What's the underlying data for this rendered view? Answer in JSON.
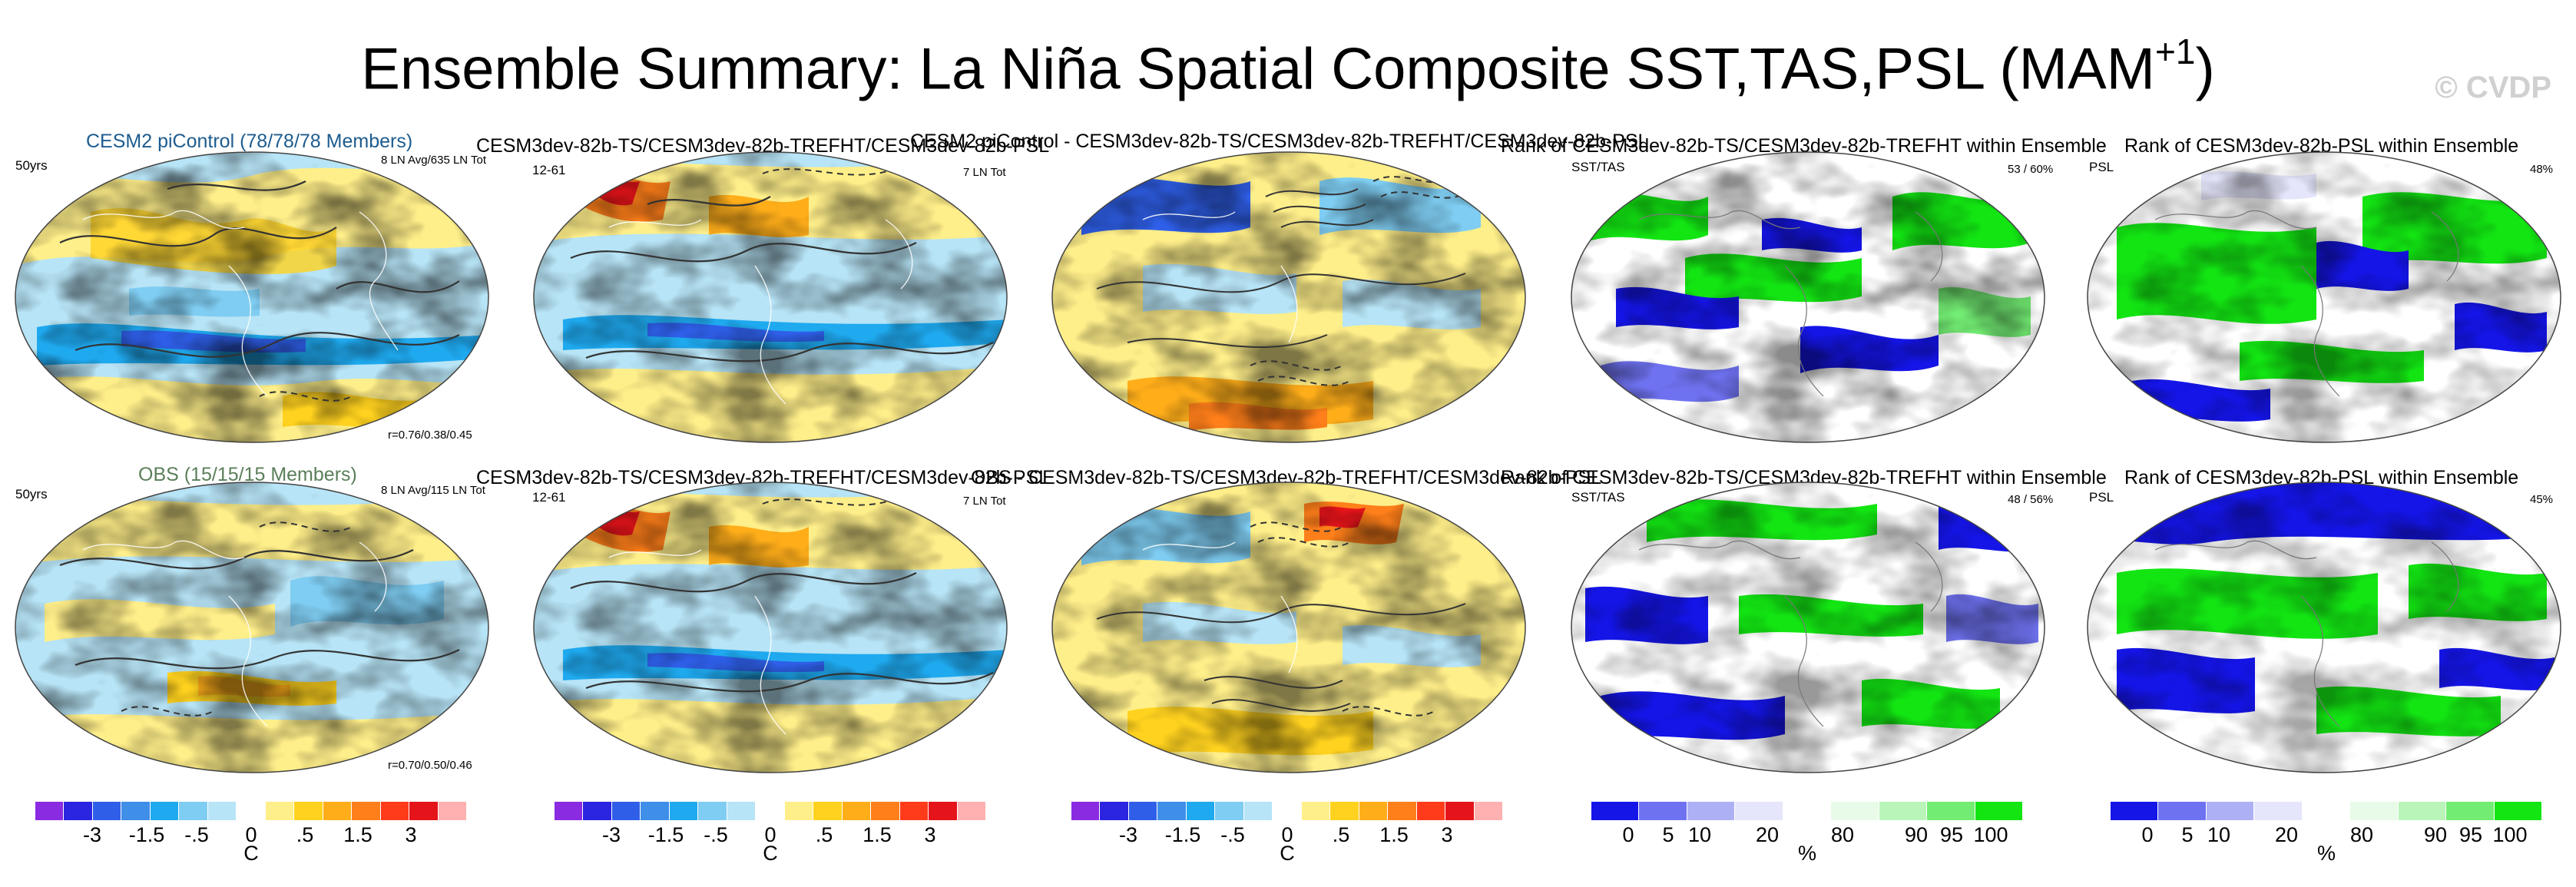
{
  "figure": {
    "title_main": "Ensemble Summary: La Niña Spatial Composite SST,TAS,PSL (MAM",
    "title_superscript": "+1",
    "title_close": ")",
    "watermark": "© CVDP"
  },
  "row1": {
    "p1": {
      "title": "CESM2 piControl (78/78/78 Members)",
      "left_label": "50yrs",
      "right_label": "8 LN Avg/635 LN Tot",
      "corr": "r=0.76/0.38/0.45"
    },
    "p2": {
      "title": "CESM3dev-82b-TS/CESM3dev-82b-TREFHT/CESM3dev-82b-PSL",
      "left_label": "12-61",
      "right_label": "7 LN Tot"
    },
    "p3": {
      "title": "CESM2 piControl - CESM3dev-82b-TS/CESM3dev-82b-TREFHT/CESM3dev-82b-PSL"
    },
    "p4": {
      "title": "Rank of CESM3dev-82b-TS/CESM3dev-82b-TREFHT within Ensemble",
      "left_label": "SST/TAS",
      "right_label": "53 /  60%"
    },
    "p5": {
      "title": "Rank of CESM3dev-82b-PSL within Ensemble",
      "left_label": "PSL",
      "right_label": "48%"
    }
  },
  "row2": {
    "p1": {
      "title": "OBS (15/15/15 Members)",
      "left_label": "50yrs",
      "right_label": "8 LN Avg/115 LN Tot",
      "corr": "r=0.70/0.50/0.46"
    },
    "p2": {
      "title": "CESM3dev-82b-TS/CESM3dev-82b-TREFHT/CESM3dev-82b-PSL",
      "left_label": "12-61",
      "right_label": "7 LN Tot"
    },
    "p3": {
      "title": "OBS - CESM3dev-82b-TS/CESM3dev-82b-TREFHT/CESM3dev-82b-PSL"
    },
    "p4": {
      "title": "Rank of CESM3dev-82b-TS/CESM3dev-82b-TREFHT within Ensemble",
      "left_label": "SST/TAS",
      "right_label": "48 /  56%"
    },
    "p5": {
      "title": "Rank of CESM3dev-82b-PSL within Ensemble",
      "left_label": "PSL",
      "right_label": "45%"
    }
  },
  "colorbars": {
    "temperature": {
      "colors": [
        "#8a2be2",
        "#2b24e0",
        "#2f5fe8",
        "#3f8ee8",
        "#1fa9ef",
        "#7fcdf2",
        "#b7e4f6",
        "#ffffff",
        "#ffef8a",
        "#ffd21f",
        "#ffae1a",
        "#ff7f1a",
        "#ff3b1a",
        "#e5141a",
        "#ffb0b0"
      ],
      "labels": [
        "-3",
        "-1.5",
        "-.5",
        "0",
        ".5",
        "1.5",
        "3"
      ],
      "unit": "C"
    },
    "rank": {
      "colors": [
        "#1515e8",
        "#6f72f0",
        "#aeb0f5",
        "#e5e6fb",
        "#ffffff",
        "#e8fbe8",
        "#b9f5b9",
        "#73ec73",
        "#13e513"
      ],
      "labels": [
        "0",
        "5",
        "10",
        "20",
        "80",
        "90",
        "95",
        "100"
      ],
      "unit": "%"
    }
  }
}
